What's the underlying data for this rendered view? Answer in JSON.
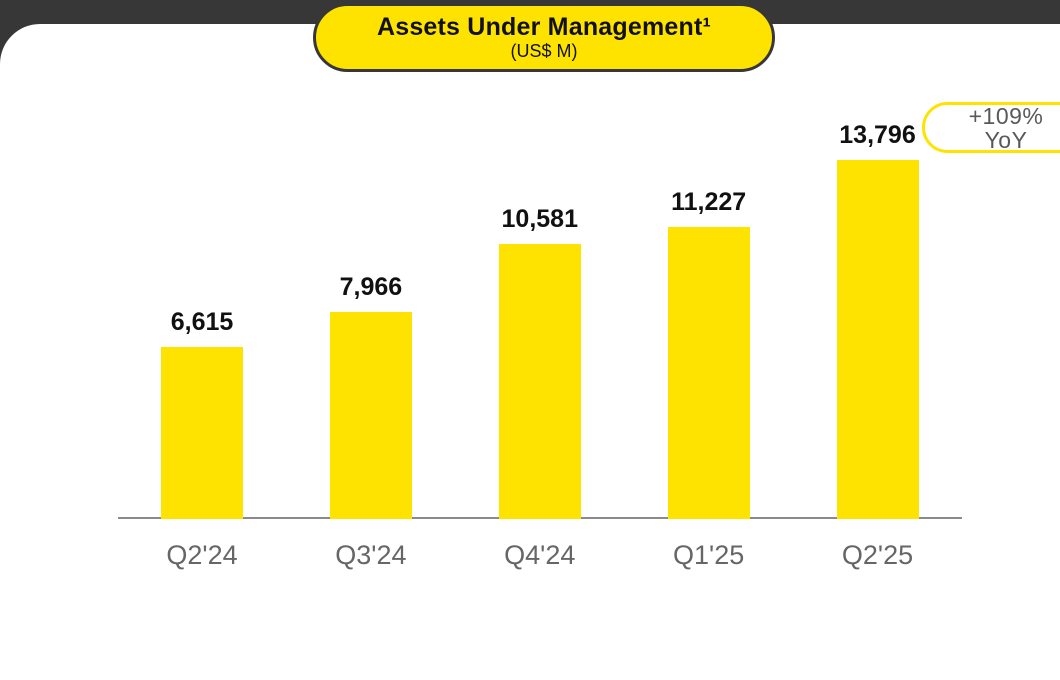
{
  "page": {
    "background": "#ffffff",
    "top_bar_color": "#373737"
  },
  "title_pill": {
    "title": "Assets Under Management¹",
    "subtitle": "(US$ M)",
    "fill": "#FFE300",
    "border_color": "#373737"
  },
  "yoy_badge": {
    "line1": "+109%",
    "line2": "YoY",
    "border_color": "#FFE300",
    "text_color": "#58595B"
  },
  "chart_data": {
    "type": "bar",
    "title": "Assets Under Management¹",
    "subtitle": "(US$ M)",
    "categories": [
      "Q2'24",
      "Q3'24",
      "Q4'24",
      "Q1'25",
      "Q2'25"
    ],
    "values": [
      6615,
      7966,
      10581,
      11227,
      13796
    ],
    "value_labels": [
      "6,615",
      "7,966",
      "10,581",
      "11,227",
      "13,796"
    ],
    "annotation": "+109% YoY",
    "bar_color": "#FFE300",
    "axis_line_color": "#8A8A8A",
    "category_label_color": "#666666",
    "value_label_color": "#111111",
    "ylim": [
      0,
      13796
    ],
    "grid": false,
    "legend": false,
    "y_axis_shown": false
  }
}
